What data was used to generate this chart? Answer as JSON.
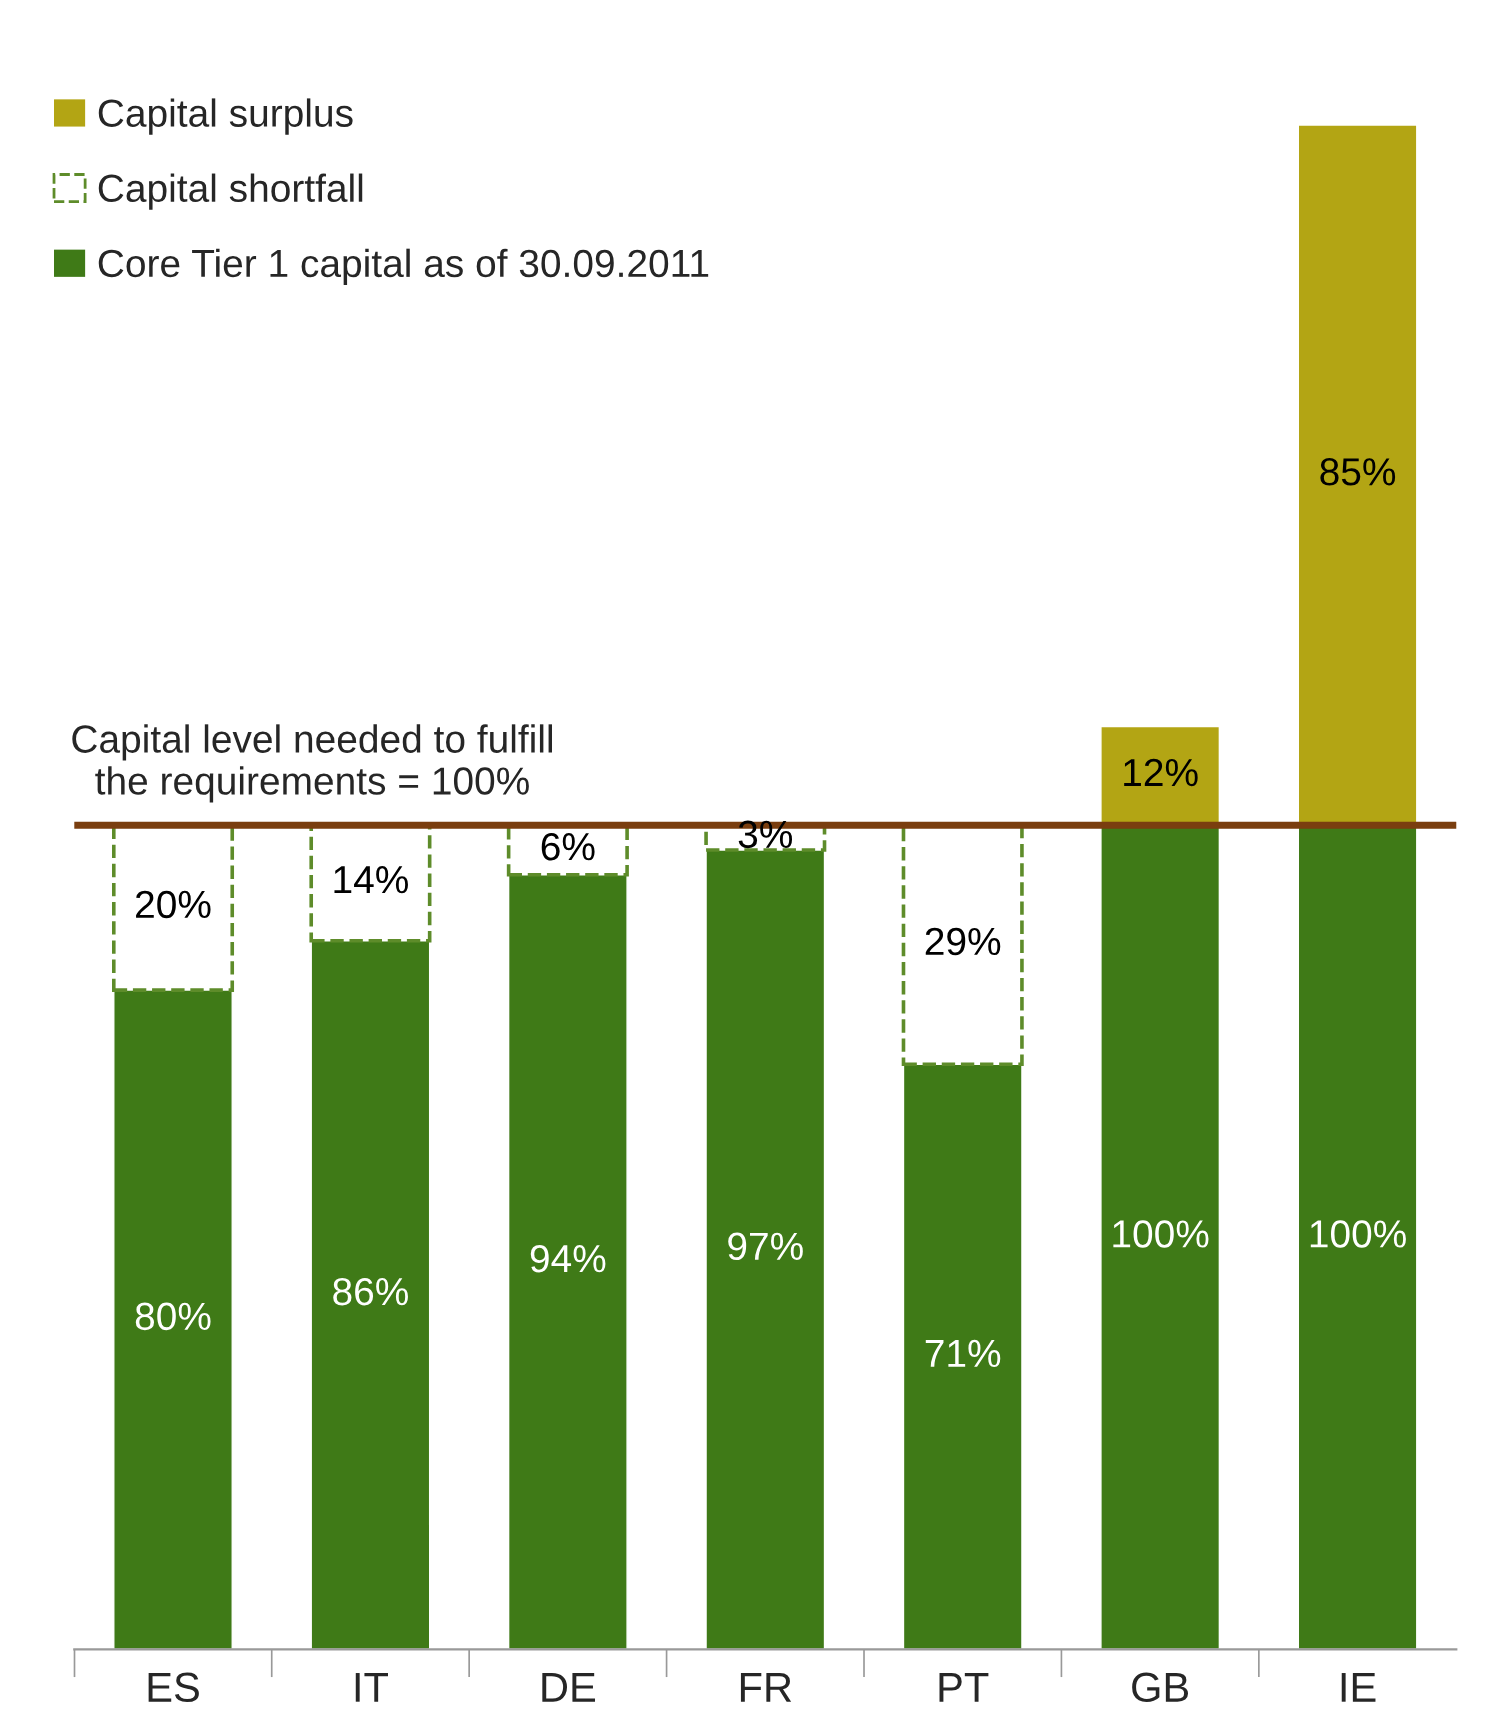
{
  "chart_data": {
    "type": "bar",
    "stacked": true,
    "categories": [
      "ES",
      "IT",
      "DE",
      "FR",
      "PT",
      "GB",
      "IE"
    ],
    "series": [
      {
        "name": "Core Tier 1 capital as of 30.09.2011",
        "color": "#3f7a17",
        "values": [
          80,
          86,
          94,
          97,
          71,
          100,
          100
        ],
        "value_labels": [
          "80%",
          "86%",
          "94%",
          "97%",
          "71%",
          "100%",
          "100%"
        ]
      },
      {
        "name": "Capital shortfall",
        "color": "#5e8c2a",
        "line_style": "dashed",
        "values": [
          20,
          14,
          6,
          3,
          29,
          null,
          null
        ],
        "value_labels": [
          "20%",
          "14%",
          "6%",
          "3%",
          "29%",
          null,
          null
        ]
      },
      {
        "name": "Capital surplus",
        "color": "#b3a514",
        "values": [
          null,
          null,
          null,
          null,
          null,
          12,
          85
        ],
        "value_labels": [
          null,
          null,
          null,
          null,
          null,
          "12%",
          "85%"
        ]
      }
    ],
    "ref_lines": [
      {
        "axis": "y",
        "value": 100,
        "label": "Capital level needed to fulfill\nthe requirements = 100%",
        "color": "#7a3e0f",
        "line_style": "solid"
      }
    ],
    "legend": "top left",
    "grid": false
  }
}
